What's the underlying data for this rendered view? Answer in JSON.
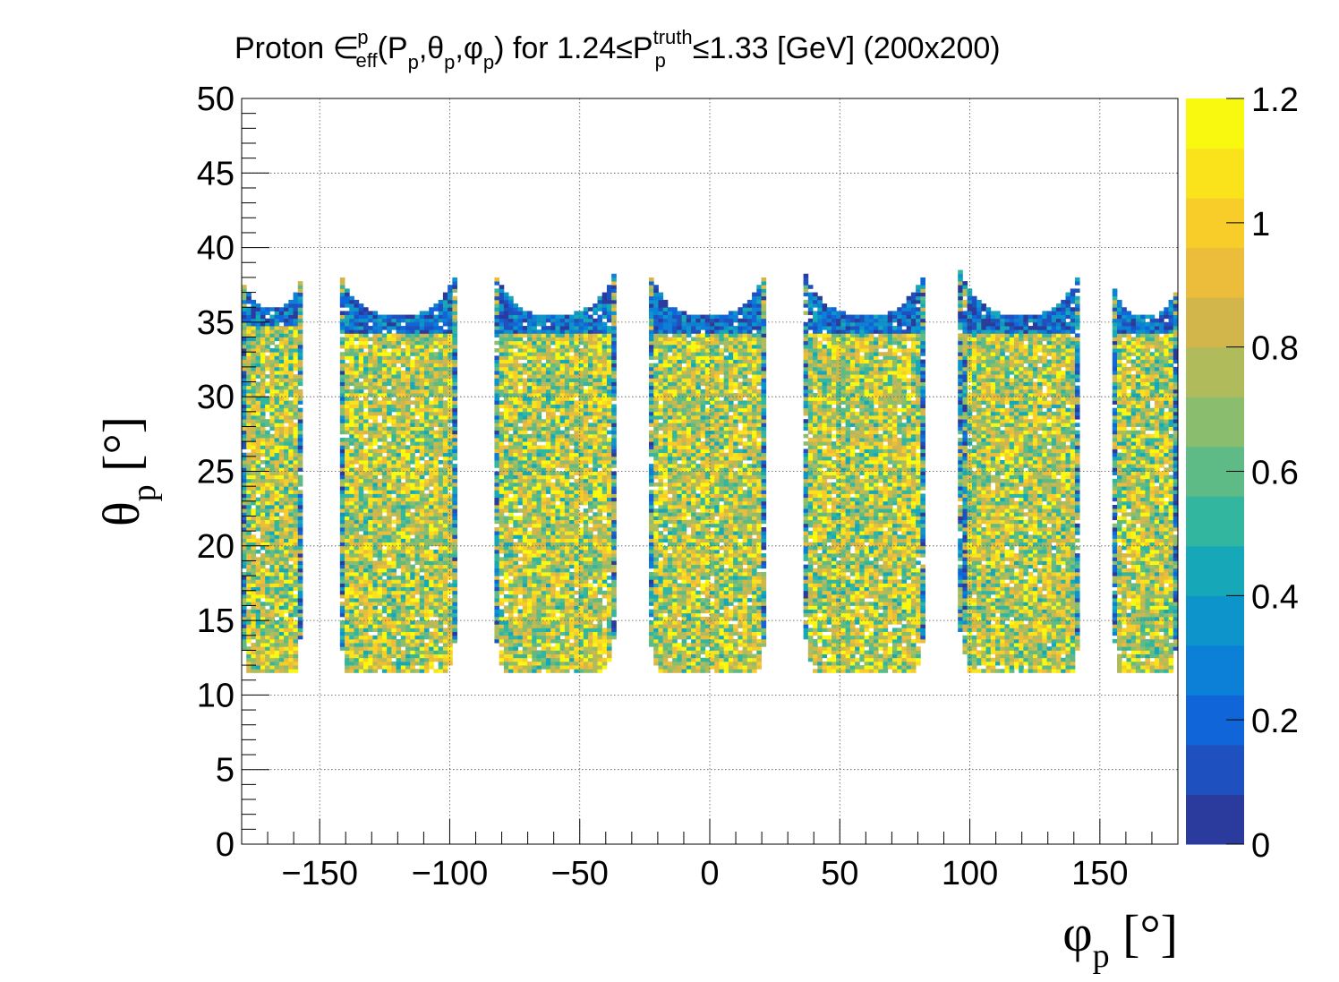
{
  "chart_data": {
    "type": "heatmap",
    "title": {
      "prefix": "Proton",
      "symbol": "∈",
      "symbol_sup": "p",
      "symbol_sub": "eff",
      "args": [
        "(P",
        "p",
        ",θ",
        "p",
        ",φ",
        "p",
        ")"
      ],
      "middle": " for 1.24≤P",
      "p_sup": "truth",
      "p_sub": "p",
      "suffix": "≤1.33 [GeV] (200x200)"
    },
    "xlabel": {
      "symbol": "φ",
      "sub": "p",
      "unit": " [°]"
    },
    "ylabel": {
      "symbol": "θ",
      "sub": "p",
      "unit": " [°]"
    },
    "xlim": [
      -180,
      180
    ],
    "ylim": [
      0,
      50
    ],
    "zlim": [
      0,
      1.2
    ],
    "x_ticks": [
      -150,
      -100,
      -50,
      0,
      50,
      100,
      150
    ],
    "x_tick_labels": [
      "−150",
      "−100",
      "−50",
      "0",
      "50",
      "100",
      "150"
    ],
    "y_ticks": [
      0,
      5,
      10,
      15,
      20,
      25,
      30,
      35,
      40,
      45,
      50
    ],
    "y_tick_labels": [
      "0",
      "5",
      "10",
      "15",
      "20",
      "25",
      "30",
      "35",
      "40",
      "45",
      "50"
    ],
    "z_ticks": [
      0,
      0.2,
      0.4,
      0.6,
      0.8,
      1,
      1.2
    ],
    "z_tick_labels": [
      "0",
      "0.2",
      "0.4",
      "0.6",
      "0.8",
      "1",
      "1.2"
    ],
    "grid": true,
    "bins": [
      200,
      200
    ],
    "colormap": [
      "#2a3b9d",
      "#1e50bf",
      "#1066d8",
      "#0c7fd6",
      "#0d95cb",
      "#16a8b9",
      "#33b6a0",
      "#5fbb86",
      "#8bbd6e",
      "#b0bb5c",
      "#d2b64c",
      "#ebbd3a",
      "#f8cd2a",
      "#fbe31c",
      "#f9f90f"
    ],
    "sectors": [
      {
        "phi_min": -180,
        "phi_max": -157,
        "theta_min": 11.5,
        "theta_max": 36,
        "edge_rise": 2
      },
      {
        "phi_min": -143,
        "phi_max": -97,
        "theta_min": 11.5,
        "theta_max": 35.5,
        "edge_rise": 3
      },
      {
        "phi_min": -83,
        "phi_max": -36,
        "theta_min": 11.5,
        "theta_max": 35.5,
        "edge_rise": 3
      },
      {
        "phi_min": -24,
        "phi_max": 22,
        "theta_min": 11.5,
        "theta_max": 35.5,
        "edge_rise": 3
      },
      {
        "phi_min": 36,
        "phi_max": 83,
        "theta_min": 11.5,
        "theta_max": 35.5,
        "edge_rise": 3
      },
      {
        "phi_min": 96,
        "phi_max": 143,
        "theta_min": 11.5,
        "theta_max": 35.5,
        "edge_rise": 3
      },
      {
        "phi_min": 155,
        "phi_max": 180,
        "theta_min": 11.5,
        "theta_max": 35.5,
        "edge_rise": 2
      }
    ]
  }
}
